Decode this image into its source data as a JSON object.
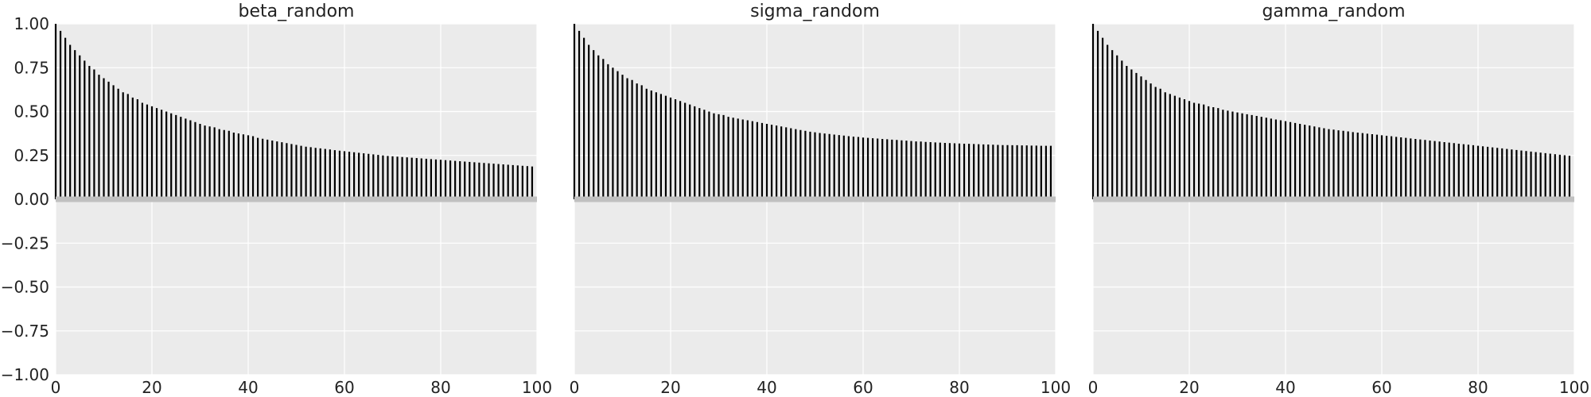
{
  "colors": {
    "plot_background": "#ebebeb",
    "grid": "#ffffff",
    "bars": "#000000",
    "zero_band": "#c0c0c0",
    "text": "#222222"
  },
  "chart_data": [
    {
      "type": "bar",
      "title": "beta_random",
      "xlabel": "",
      "ylabel": "",
      "xlim": [
        0,
        100
      ],
      "ylim": [
        -1.0,
        1.0
      ],
      "xticks": [
        "0",
        "20",
        "40",
        "60",
        "80",
        "100"
      ],
      "yticks": [
        "1.00",
        "0.75",
        "0.50",
        "0.25",
        "0.00",
        "−0.25",
        "−0.50",
        "−0.75",
        "−1.00"
      ],
      "grid": true,
      "lags": [
        0,
        1,
        2,
        3,
        4,
        5,
        6,
        7,
        8,
        9,
        10,
        11,
        12,
        13,
        14,
        15,
        16,
        17,
        18,
        19,
        20,
        21,
        22,
        23,
        24,
        25,
        26,
        27,
        28,
        29,
        30,
        31,
        32,
        33,
        34,
        35,
        36,
        37,
        38,
        39,
        40,
        41,
        42,
        43,
        44,
        45,
        46,
        47,
        48,
        49,
        50,
        51,
        52,
        53,
        54,
        55,
        56,
        57,
        58,
        59,
        60,
        61,
        62,
        63,
        64,
        65,
        66,
        67,
        68,
        69,
        70,
        71,
        72,
        73,
        74,
        75,
        76,
        77,
        78,
        79,
        80,
        81,
        82,
        83,
        84,
        85,
        86,
        87,
        88,
        89,
        90,
        91,
        92,
        93,
        94,
        95,
        96,
        97,
        98,
        99
      ],
      "values": [
        1.0,
        0.96,
        0.92,
        0.88,
        0.85,
        0.82,
        0.79,
        0.76,
        0.74,
        0.71,
        0.69,
        0.67,
        0.65,
        0.63,
        0.61,
        0.6,
        0.58,
        0.57,
        0.55,
        0.54,
        0.53,
        0.52,
        0.51,
        0.5,
        0.49,
        0.48,
        0.47,
        0.46,
        0.45,
        0.44,
        0.43,
        0.42,
        0.415,
        0.41,
        0.4,
        0.395,
        0.39,
        0.38,
        0.375,
        0.37,
        0.365,
        0.36,
        0.35,
        0.345,
        0.34,
        0.335,
        0.33,
        0.325,
        0.32,
        0.315,
        0.31,
        0.305,
        0.3,
        0.297,
        0.293,
        0.29,
        0.287,
        0.284,
        0.28,
        0.277,
        0.274,
        0.271,
        0.268,
        0.265,
        0.262,
        0.259,
        0.256,
        0.253,
        0.25,
        0.247,
        0.245,
        0.243,
        0.241,
        0.239,
        0.237,
        0.235,
        0.233,
        0.231,
        0.229,
        0.227,
        0.225,
        0.223,
        0.221,
        0.219,
        0.217,
        0.215,
        0.213,
        0.211,
        0.209,
        0.207,
        0.205,
        0.203,
        0.201,
        0.199,
        0.197,
        0.195,
        0.193,
        0.191,
        0.189,
        0.187
      ]
    },
    {
      "type": "bar",
      "title": "sigma_random",
      "xlabel": "",
      "ylabel": "",
      "xlim": [
        0,
        100
      ],
      "ylim": [
        -1.0,
        1.0
      ],
      "xticks": [
        "0",
        "20",
        "40",
        "60",
        "80",
        "100"
      ],
      "grid": true,
      "lags": [
        0,
        1,
        2,
        3,
        4,
        5,
        6,
        7,
        8,
        9,
        10,
        11,
        12,
        13,
        14,
        15,
        16,
        17,
        18,
        19,
        20,
        21,
        22,
        23,
        24,
        25,
        26,
        27,
        28,
        29,
        30,
        31,
        32,
        33,
        34,
        35,
        36,
        37,
        38,
        39,
        40,
        41,
        42,
        43,
        44,
        45,
        46,
        47,
        48,
        49,
        50,
        51,
        52,
        53,
        54,
        55,
        56,
        57,
        58,
        59,
        60,
        61,
        62,
        63,
        64,
        65,
        66,
        67,
        68,
        69,
        70,
        71,
        72,
        73,
        74,
        75,
        76,
        77,
        78,
        79,
        80,
        81,
        82,
        83,
        84,
        85,
        86,
        87,
        88,
        89,
        90,
        91,
        92,
        93,
        94,
        95,
        96,
        97,
        98,
        99
      ],
      "values": [
        1.0,
        0.96,
        0.92,
        0.88,
        0.85,
        0.82,
        0.8,
        0.77,
        0.75,
        0.73,
        0.71,
        0.69,
        0.68,
        0.66,
        0.65,
        0.63,
        0.62,
        0.61,
        0.6,
        0.59,
        0.58,
        0.57,
        0.56,
        0.55,
        0.54,
        0.53,
        0.52,
        0.51,
        0.5,
        0.49,
        0.485,
        0.48,
        0.47,
        0.465,
        0.46,
        0.455,
        0.45,
        0.445,
        0.44,
        0.435,
        0.43,
        0.425,
        0.42,
        0.415,
        0.41,
        0.405,
        0.4,
        0.395,
        0.39,
        0.385,
        0.382,
        0.378,
        0.375,
        0.372,
        0.369,
        0.366,
        0.363,
        0.36,
        0.357,
        0.355,
        0.352,
        0.35,
        0.348,
        0.346,
        0.344,
        0.342,
        0.34,
        0.338,
        0.336,
        0.334,
        0.332,
        0.33,
        0.329,
        0.327,
        0.326,
        0.324,
        0.323,
        0.321,
        0.32,
        0.319,
        0.318,
        0.317,
        0.316,
        0.315,
        0.314,
        0.313,
        0.312,
        0.311,
        0.31,
        0.309,
        0.309,
        0.308,
        0.308,
        0.307,
        0.307,
        0.306,
        0.306,
        0.305,
        0.305,
        0.305
      ]
    },
    {
      "type": "bar",
      "title": "gamma_random",
      "xlabel": "",
      "ylabel": "",
      "xlim": [
        0,
        100
      ],
      "ylim": [
        -1.0,
        1.0
      ],
      "xticks": [
        "0",
        "20",
        "40",
        "60",
        "80",
        "100"
      ],
      "grid": true,
      "lags": [
        0,
        1,
        2,
        3,
        4,
        5,
        6,
        7,
        8,
        9,
        10,
        11,
        12,
        13,
        14,
        15,
        16,
        17,
        18,
        19,
        20,
        21,
        22,
        23,
        24,
        25,
        26,
        27,
        28,
        29,
        30,
        31,
        32,
        33,
        34,
        35,
        36,
        37,
        38,
        39,
        40,
        41,
        42,
        43,
        44,
        45,
        46,
        47,
        48,
        49,
        50,
        51,
        52,
        53,
        54,
        55,
        56,
        57,
        58,
        59,
        60,
        61,
        62,
        63,
        64,
        65,
        66,
        67,
        68,
        69,
        70,
        71,
        72,
        73,
        74,
        75,
        76,
        77,
        78,
        79,
        80,
        81,
        82,
        83,
        84,
        85,
        86,
        87,
        88,
        89,
        90,
        91,
        92,
        93,
        94,
        95,
        96,
        97,
        98,
        99
      ],
      "values": [
        1.0,
        0.96,
        0.92,
        0.88,
        0.85,
        0.82,
        0.79,
        0.76,
        0.74,
        0.72,
        0.7,
        0.68,
        0.66,
        0.64,
        0.63,
        0.61,
        0.6,
        0.59,
        0.58,
        0.57,
        0.56,
        0.55,
        0.545,
        0.54,
        0.53,
        0.525,
        0.52,
        0.51,
        0.505,
        0.5,
        0.495,
        0.49,
        0.485,
        0.48,
        0.475,
        0.47,
        0.465,
        0.46,
        0.455,
        0.45,
        0.445,
        0.44,
        0.435,
        0.43,
        0.425,
        0.42,
        0.415,
        0.41,
        0.405,
        0.4,
        0.397,
        0.393,
        0.39,
        0.387,
        0.383,
        0.38,
        0.377,
        0.374,
        0.371,
        0.368,
        0.365,
        0.362,
        0.359,
        0.356,
        0.353,
        0.35,
        0.347,
        0.344,
        0.341,
        0.338,
        0.335,
        0.332,
        0.329,
        0.326,
        0.323,
        0.32,
        0.317,
        0.314,
        0.311,
        0.308,
        0.305,
        0.302,
        0.299,
        0.296,
        0.293,
        0.29,
        0.287,
        0.284,
        0.281,
        0.278,
        0.275,
        0.272,
        0.269,
        0.266,
        0.263,
        0.26,
        0.257,
        0.254,
        0.251,
        0.248
      ]
    }
  ]
}
